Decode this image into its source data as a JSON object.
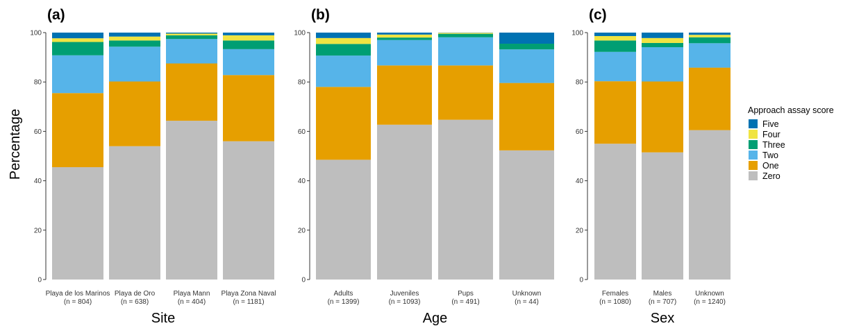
{
  "colors": {
    "Zero": "#bebebe",
    "One": "#e69f00",
    "Two": "#56b4e9",
    "Three": "#009e73",
    "Four": "#f0e442",
    "Five": "#0072b2"
  },
  "y_axis_title": "Percentage",
  "legend": {
    "title": "Approach assay score",
    "placement": "right",
    "entries": [
      "Five",
      "Four",
      "Three",
      "Two",
      "One",
      "Zero"
    ]
  },
  "chart_data": [
    {
      "type": "bar",
      "stacked": true,
      "panel_label": "(a)",
      "xlabel": "Site",
      "ylabel": "Percentage",
      "ylim": [
        0,
        100
      ],
      "yticks": [
        0,
        20,
        40,
        60,
        80,
        100
      ],
      "categories": [
        "Playa de los Marinos",
        "Playa de Oro",
        "Playa Mann",
        "Playa Zona Naval"
      ],
      "category_n": [
        "(n = 804)",
        "(n = 638)",
        "(n = 404)",
        "(n = 1181)"
      ],
      "series": [
        {
          "name": "Zero",
          "values": [
            45.5,
            54.0,
            64.3,
            56.0
          ]
        },
        {
          "name": "One",
          "values": [
            30.0,
            26.2,
            23.2,
            26.8
          ]
        },
        {
          "name": "Two",
          "values": [
            15.3,
            14.1,
            9.9,
            10.5
          ]
        },
        {
          "name": "Three",
          "values": [
            5.4,
            2.5,
            1.5,
            3.5
          ]
        },
        {
          "name": "Four",
          "values": [
            1.5,
            1.6,
            0.7,
            2.1
          ]
        },
        {
          "name": "Five",
          "values": [
            2.3,
            1.6,
            0.4,
            1.1
          ]
        }
      ]
    },
    {
      "type": "bar",
      "stacked": true,
      "panel_label": "(b)",
      "xlabel": "Age",
      "ylabel": "",
      "ylim": [
        0,
        100
      ],
      "yticks": [
        0,
        20,
        40,
        60,
        80,
        100
      ],
      "categories": [
        "Adults",
        "Juveniles",
        "Pups",
        "Unknown"
      ],
      "category_n": [
        "(n = 1399)",
        "(n = 1093)",
        "(n = 491)",
        "(n = 44)"
      ],
      "series": [
        {
          "name": "Zero",
          "values": [
            48.5,
            62.7,
            64.7,
            52.3
          ]
        },
        {
          "name": "One",
          "values": [
            29.5,
            24.0,
            22.0,
            27.3
          ]
        },
        {
          "name": "Two",
          "values": [
            12.7,
            10.3,
            11.4,
            13.6
          ]
        },
        {
          "name": "Three",
          "values": [
            4.7,
            1.0,
            1.4,
            2.3
          ]
        },
        {
          "name": "Four",
          "values": [
            2.4,
            1.2,
            0.4,
            0.0
          ]
        },
        {
          "name": "Five",
          "values": [
            2.2,
            0.8,
            0.1,
            4.5
          ]
        }
      ]
    },
    {
      "type": "bar",
      "stacked": true,
      "panel_label": "(c)",
      "xlabel": "Sex",
      "ylabel": "",
      "ylim": [
        0,
        100
      ],
      "yticks": [
        0,
        20,
        40,
        60,
        80,
        100
      ],
      "categories": [
        "Females",
        "Males",
        "Unknown"
      ],
      "category_n": [
        "(n = 1080)",
        "(n = 707)",
        "(n = 1240)"
      ],
      "series": [
        {
          "name": "Zero",
          "values": [
            55.0,
            51.5,
            60.5
          ]
        },
        {
          "name": "One",
          "values": [
            25.3,
            28.7,
            25.3
          ]
        },
        {
          "name": "Two",
          "values": [
            11.9,
            13.9,
            9.9
          ]
        },
        {
          "name": "Three",
          "values": [
            4.6,
            1.7,
            2.4
          ]
        },
        {
          "name": "Four",
          "values": [
            1.8,
            2.0,
            1.0
          ]
        },
        {
          "name": "Five",
          "values": [
            1.4,
            2.2,
            0.9
          ]
        }
      ]
    }
  ]
}
